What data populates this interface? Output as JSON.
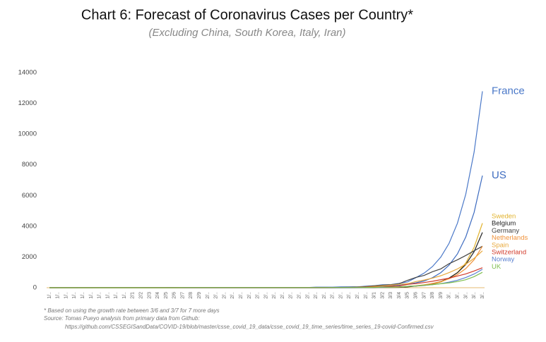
{
  "chart_data": {
    "type": "line",
    "title": "Chart 6: Forecast of Coronavirus Cases per Country*",
    "subtitle": "(Excluding China, South Korea, Italy, Iran)",
    "annotations": [
      "* Based on using the growth rate between 3/6 and 3/7 for 7 more days",
      "Source: Tomas Pueyo analysis from primary data from Github:",
      "https://github.com/CSSEGISandData/COVID-19/blob/master/csse_covid_19_data/csse_covid_19_time_series/time_series_19-covid-Confirmed.csv"
    ],
    "categories": [
      "1/..",
      "1/..",
      "1/..",
      "1/..",
      "1/..",
      "1/..",
      "1/..",
      "1/..",
      "1/..",
      "1/..",
      "2/1",
      "2/2",
      "2/3",
      "2/4",
      "2/5",
      "2/6",
      "2/7",
      "2/8",
      "2/9",
      "2/..",
      "2/..",
      "2/..",
      "2/..",
      "2/..",
      "2/..",
      "2/..",
      "2/..",
      "2/..",
      "2/..",
      "2/..",
      "2/..",
      "2/..",
      "2/..",
      "2/..",
      "2/..",
      "2/..",
      "2/..",
      "2/..",
      "2/..",
      "3/1",
      "3/2",
      "3/3",
      "3/4",
      "3/5",
      "3/6",
      "3/7",
      "3/8",
      "3/9",
      "3/..",
      "3/..",
      "3/..",
      "3/..",
      "3/.."
    ],
    "ylim": [
      0,
      14000
    ],
    "yticks": [
      0,
      2000,
      4000,
      6000,
      8000,
      10000,
      12000,
      14000
    ],
    "grid": false,
    "series": [
      {
        "name": "France",
        "color": "#4a78c8",
        "values": [
          0,
          0,
          3,
          3,
          3,
          3,
          4,
          5,
          5,
          5,
          6,
          6,
          6,
          6,
          6,
          6,
          6,
          11,
          11,
          11,
          11,
          11,
          11,
          11,
          12,
          12,
          12,
          12,
          12,
          12,
          12,
          12,
          12,
          12,
          14,
          18,
          38,
          57,
          100,
          130,
          191,
          204,
          285,
          377,
          653,
          949,
          1376,
          1995,
          2893,
          4195,
          6083,
          8820,
          12790
        ]
      },
      {
        "name": "US",
        "color": "#3e6cc0",
        "values": [
          1,
          1,
          2,
          2,
          5,
          5,
          5,
          5,
          5,
          6,
          7,
          8,
          11,
          11,
          11,
          12,
          12,
          12,
          12,
          12,
          13,
          13,
          14,
          14,
          14,
          14,
          14,
          14,
          14,
          14,
          15,
          15,
          35,
          35,
          35,
          53,
          57,
          60,
          62,
          75,
          100,
          124,
          158,
          221,
          319,
          435,
          650,
          980,
          1470,
          2200,
          3300,
          4900,
          7300
        ]
      },
      {
        "name": "Sweden",
        "color": "#e2b32e",
        "values": [
          0,
          0,
          0,
          0,
          0,
          0,
          0,
          0,
          0,
          0,
          1,
          1,
          1,
          1,
          1,
          1,
          1,
          1,
          1,
          1,
          1,
          1,
          1,
          1,
          1,
          1,
          1,
          1,
          1,
          1,
          1,
          1,
          1,
          1,
          1,
          1,
          7,
          7,
          12,
          14,
          15,
          21,
          35,
          94,
          101,
          140,
          228,
          372,
          606,
          987,
          1610,
          2620,
          4200
        ]
      },
      {
        "name": "Belgium",
        "color": "#222222",
        "values": [
          0,
          0,
          0,
          0,
          0,
          0,
          0,
          0,
          0,
          0,
          0,
          0,
          0,
          0,
          1,
          1,
          1,
          1,
          1,
          1,
          1,
          1,
          1,
          1,
          1,
          1,
          1,
          1,
          1,
          1,
          1,
          1,
          1,
          1,
          1,
          1,
          1,
          1,
          1,
          2,
          8,
          13,
          23,
          50,
          109,
          169,
          262,
          406,
          629,
          975,
          1510,
          2340,
          3600
        ]
      },
      {
        "name": "Germany",
        "color": "#444444",
        "values": [
          0,
          0,
          0,
          0,
          0,
          1,
          4,
          4,
          4,
          5,
          8,
          10,
          12,
          12,
          12,
          12,
          13,
          13,
          14,
          14,
          16,
          16,
          16,
          16,
          16,
          16,
          16,
          16,
          16,
          16,
          16,
          16,
          16,
          16,
          16,
          18,
          26,
          48,
          79,
          130,
          159,
          196,
          262,
          482,
          670,
          799,
          1040,
          1224,
          1565,
          1820,
          2100,
          2400,
          2700
        ]
      },
      {
        "name": "Netherlands",
        "color": "#f0923a",
        "values": [
          0,
          0,
          0,
          0,
          0,
          0,
          0,
          0,
          0,
          0,
          0,
          0,
          0,
          0,
          0,
          0,
          0,
          0,
          0,
          0,
          0,
          0,
          0,
          0,
          0,
          0,
          0,
          0,
          0,
          0,
          0,
          0,
          0,
          0,
          0,
          1,
          1,
          2,
          7,
          10,
          18,
          24,
          38,
          82,
          128,
          188,
          274,
          400,
          584,
          853,
          1245,
          1818,
          2700
        ]
      },
      {
        "name": "Spain",
        "color": "#e8a83c",
        "values": [
          0,
          0,
          0,
          0,
          0,
          0,
          0,
          0,
          0,
          1,
          1,
          1,
          1,
          1,
          1,
          1,
          1,
          1,
          1,
          2,
          2,
          2,
          2,
          2,
          2,
          2,
          2,
          2,
          2,
          2,
          2,
          2,
          2,
          2,
          6,
          13,
          15,
          32,
          45,
          84,
          120,
          165,
          222,
          259,
          400,
          500,
          625,
          780,
          980,
          1220,
          1530,
          1910,
          2400
        ]
      },
      {
        "name": "Switzerland",
        "color": "#d23a2a",
        "values": [
          0,
          0,
          0,
          0,
          0,
          0,
          0,
          0,
          0,
          0,
          0,
          0,
          0,
          0,
          0,
          0,
          0,
          0,
          0,
          0,
          0,
          0,
          0,
          0,
          0,
          0,
          0,
          0,
          0,
          0,
          0,
          0,
          0,
          1,
          1,
          8,
          8,
          18,
          27,
          42,
          56,
          90,
          114,
          214,
          268,
          337,
          420,
          525,
          620,
          760,
          900,
          1090,
          1300
        ]
      },
      {
        "name": "Norway",
        "color": "#5a80d0",
        "values": [
          0,
          0,
          0,
          0,
          0,
          0,
          0,
          0,
          0,
          0,
          0,
          0,
          0,
          0,
          0,
          0,
          0,
          0,
          0,
          0,
          0,
          0,
          0,
          0,
          0,
          0,
          0,
          0,
          0,
          0,
          0,
          0,
          0,
          0,
          0,
          1,
          1,
          6,
          15,
          19,
          25,
          32,
          56,
          87,
          108,
          147,
          198,
          268,
          362,
          488,
          660,
          890,
          1200
        ]
      },
      {
        "name": "UK",
        "color": "#7fbf4f",
        "values": [
          0,
          0,
          0,
          0,
          0,
          0,
          0,
          0,
          0,
          2,
          2,
          2,
          2,
          2,
          2,
          2,
          8,
          8,
          9,
          9,
          9,
          9,
          9,
          9,
          9,
          9,
          9,
          9,
          9,
          9,
          9,
          9,
          9,
          9,
          13,
          13,
          13,
          15,
          20,
          23,
          36,
          40,
          51,
          85,
          115,
          163,
          204,
          255,
          319,
          398,
          520,
          720,
          1000
        ]
      }
    ]
  }
}
